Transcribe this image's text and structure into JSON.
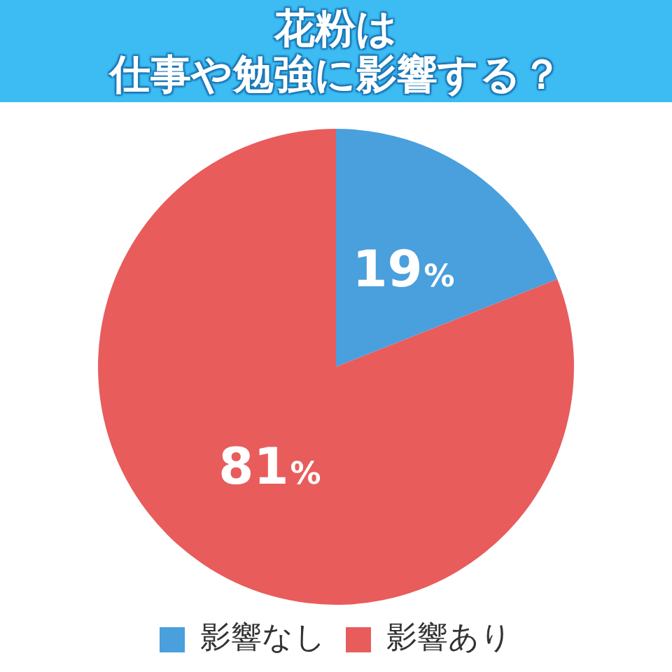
{
  "chart_data": {
    "type": "pie",
    "title": "花粉は",
    "subtitle": "仕事や勉強に影響する？",
    "categories": [
      "影響なし",
      "影響あり"
    ],
    "values": [
      19,
      81
    ],
    "colors": [
      "#4a9fdd",
      "#e85c5c"
    ],
    "value_labels": [
      "19%",
      "81%"
    ],
    "legend": "bottom"
  }
}
